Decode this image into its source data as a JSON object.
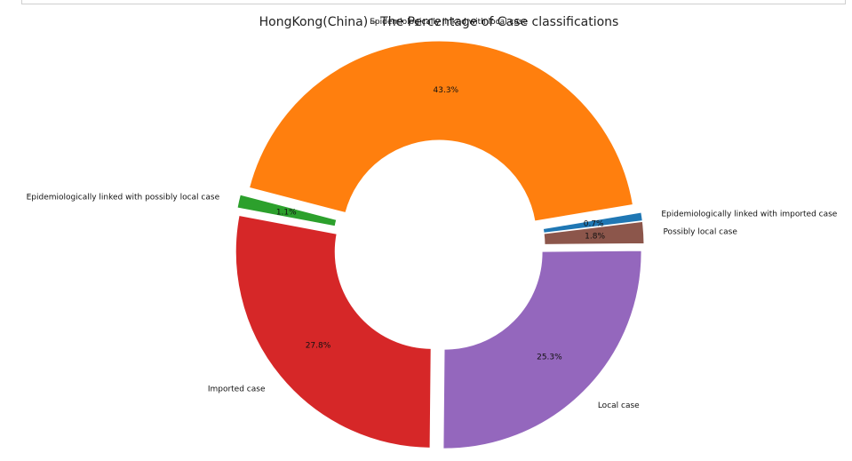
{
  "chart_data": {
    "type": "pie",
    "title": "HongKong(China) - The Percentage of Case classifications",
    "donut": true,
    "slices": [
      {
        "label": "Epidemiologically linked with imported case",
        "value": 0.7,
        "pct_label": "0.7%",
        "color": "#1f77b4"
      },
      {
        "label": "Epidemiologically linked with local case",
        "value": 43.3,
        "pct_label": "43.3%",
        "color": "#ff7f0e"
      },
      {
        "label": "Epidemiologically linked with possibly local case",
        "value": 1.1,
        "pct_label": "1.1%",
        "color": "#2ca02c"
      },
      {
        "label": "Imported case",
        "value": 27.8,
        "pct_label": "27.8%",
        "color": "#d62728"
      },
      {
        "label": "Local case",
        "value": 25.3,
        "pct_label": "25.3%",
        "color": "#9467bd"
      },
      {
        "label": "Possibly local case",
        "value": 1.8,
        "pct_label": "1.8%",
        "color": "#8c564b"
      }
    ]
  }
}
